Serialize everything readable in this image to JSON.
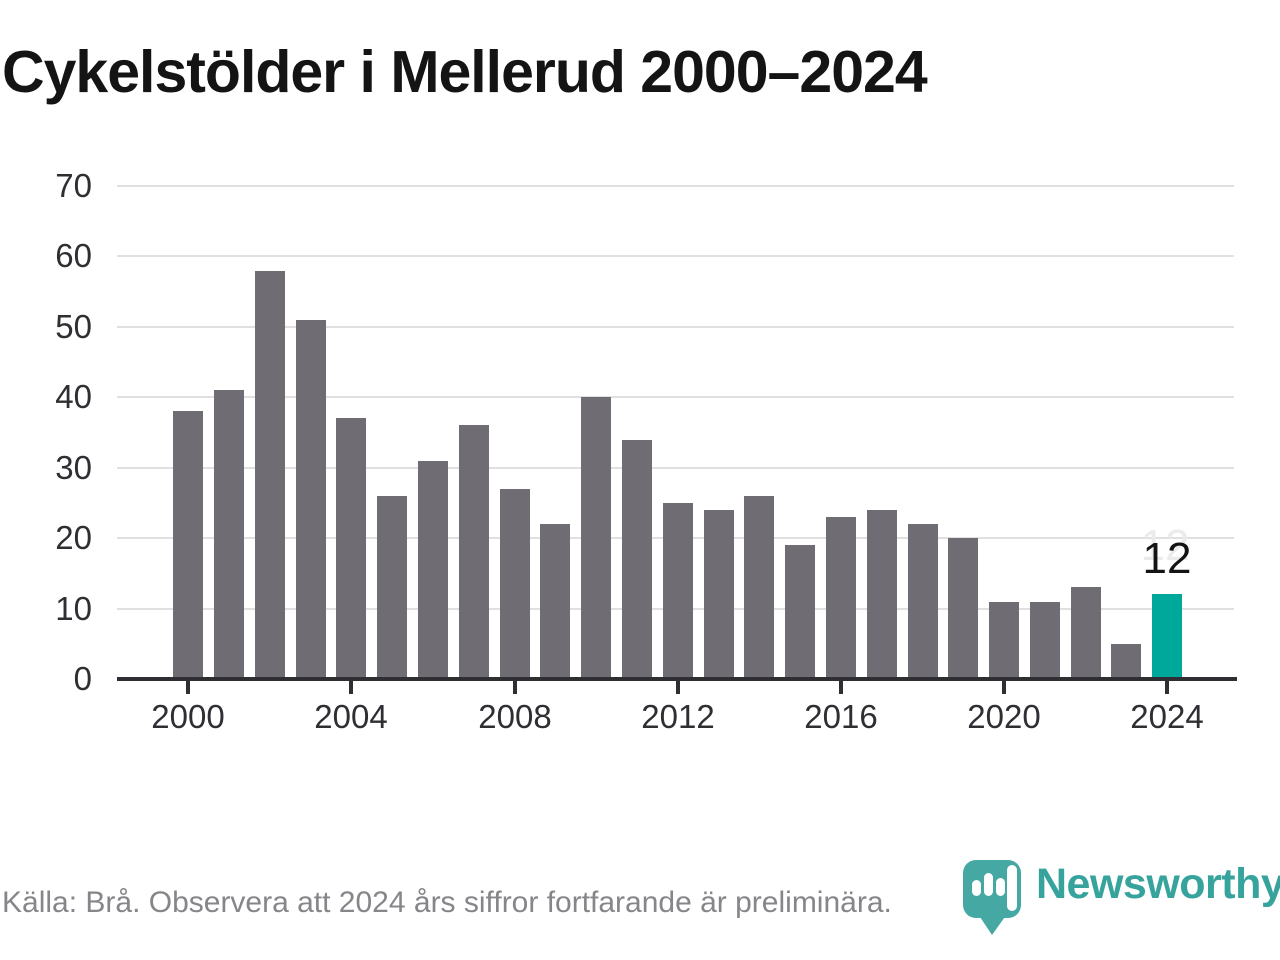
{
  "title": "Cykelstölder i Mellerud 2000–2024",
  "footer": {
    "source_note": "Källa: Brå. Observera att 2024 års siffror fortfarande är preliminära.",
    "brand": "Newsworthy"
  },
  "colors": {
    "bar": "#6f6d73",
    "highlight_bar": "#00a79b",
    "gridline": "#e0e0e0",
    "axis": "#2e2e33",
    "tick_label": "#2e2e33",
    "title_text": "#141414",
    "footer_text": "#85858a",
    "brand_teal": "#36a39d"
  },
  "chart_data": {
    "type": "bar",
    "title": "Cykelstölder i Mellerud 2000–2024",
    "categories": [
      2000,
      2001,
      2002,
      2003,
      2004,
      2005,
      2006,
      2007,
      2008,
      2009,
      2010,
      2011,
      2012,
      2013,
      2014,
      2015,
      2016,
      2017,
      2018,
      2019,
      2020,
      2021,
      2022,
      2023,
      2024
    ],
    "values": [
      38,
      41,
      58,
      51,
      37,
      26,
      31,
      36,
      27,
      22,
      40,
      34,
      25,
      24,
      26,
      19,
      23,
      24,
      22,
      20,
      11,
      11,
      13,
      5,
      12
    ],
    "highlight_index": 24,
    "highlight_label": "12",
    "xlabel": "",
    "ylabel": "",
    "ylim": [
      0,
      70
    ],
    "yticks": [
      0,
      10,
      20,
      30,
      40,
      50,
      60,
      70
    ],
    "xticks": [
      2000,
      2004,
      2008,
      2012,
      2016,
      2020,
      2024
    ],
    "grid": true,
    "legend": "none"
  }
}
